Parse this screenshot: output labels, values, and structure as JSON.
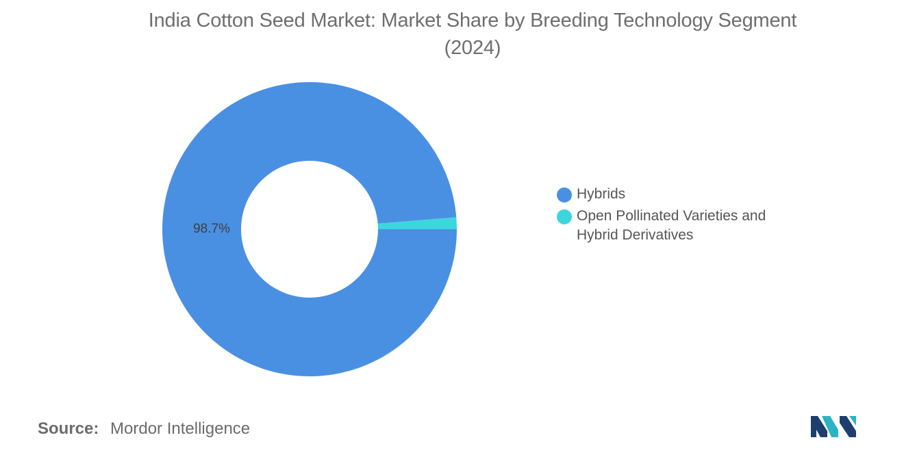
{
  "chart_data": {
    "type": "pie",
    "title": "India Cotton Seed Market: Market Share by Breeding Technology Segment",
    "subtitle": "(2024)",
    "donut": true,
    "series": [
      {
        "name": "Hybrids",
        "value": 98.7,
        "color": "#4a90e2",
        "label": "98.7%"
      },
      {
        "name": "Open Pollinated Varieties and Hybrid Derivatives",
        "value": 1.3,
        "color": "#3dd6dc",
        "label": ""
      }
    ],
    "legend_position": "right"
  },
  "legend": {
    "items": [
      {
        "label_line1": "Hybrids",
        "label_line2": "",
        "color": "#4a90e2"
      },
      {
        "label_line1": "Open Pollinated Varieties and",
        "label_line2": "Hybrid Derivatives",
        "color": "#3dd6dc"
      }
    ]
  },
  "source": {
    "label": "Source:",
    "value": "Mordor Intelligence"
  },
  "logo": {
    "icon": "mordor-intelligence-logo-icon",
    "colors": [
      "#1d3e6e",
      "#2bb3c4"
    ]
  }
}
